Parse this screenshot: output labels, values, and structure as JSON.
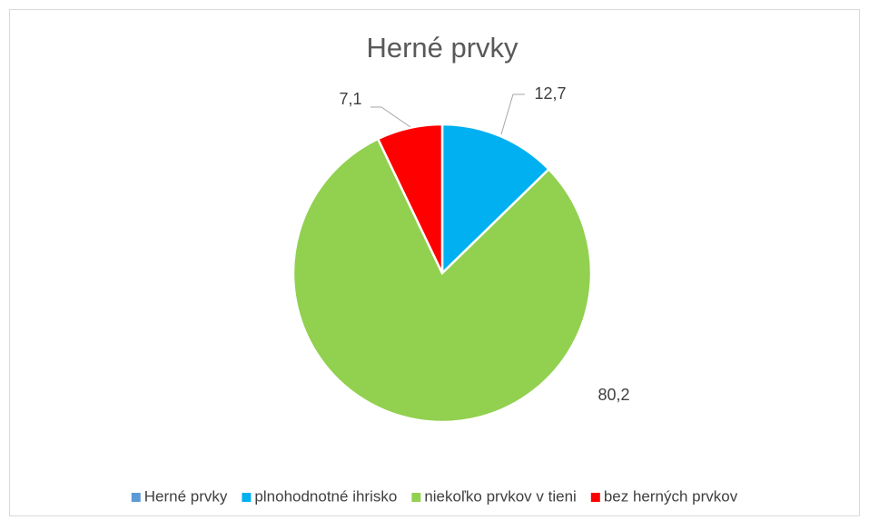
{
  "chart_data": {
    "type": "pie",
    "title": "Herné prvky",
    "categories": [
      "Herné prvky",
      "plnohodnotné ihrisko",
      "niekoľko prvkov v tieni",
      "bez herných prvkov"
    ],
    "values": [
      null,
      12.7,
      80.2,
      7.1
    ],
    "value_labels": [
      null,
      "12,7",
      "80,2",
      "7,1"
    ],
    "colors": [
      "#5b9bd5",
      "#00b0f0",
      "#92d050",
      "#ff0000"
    ],
    "legend": "bottom"
  }
}
